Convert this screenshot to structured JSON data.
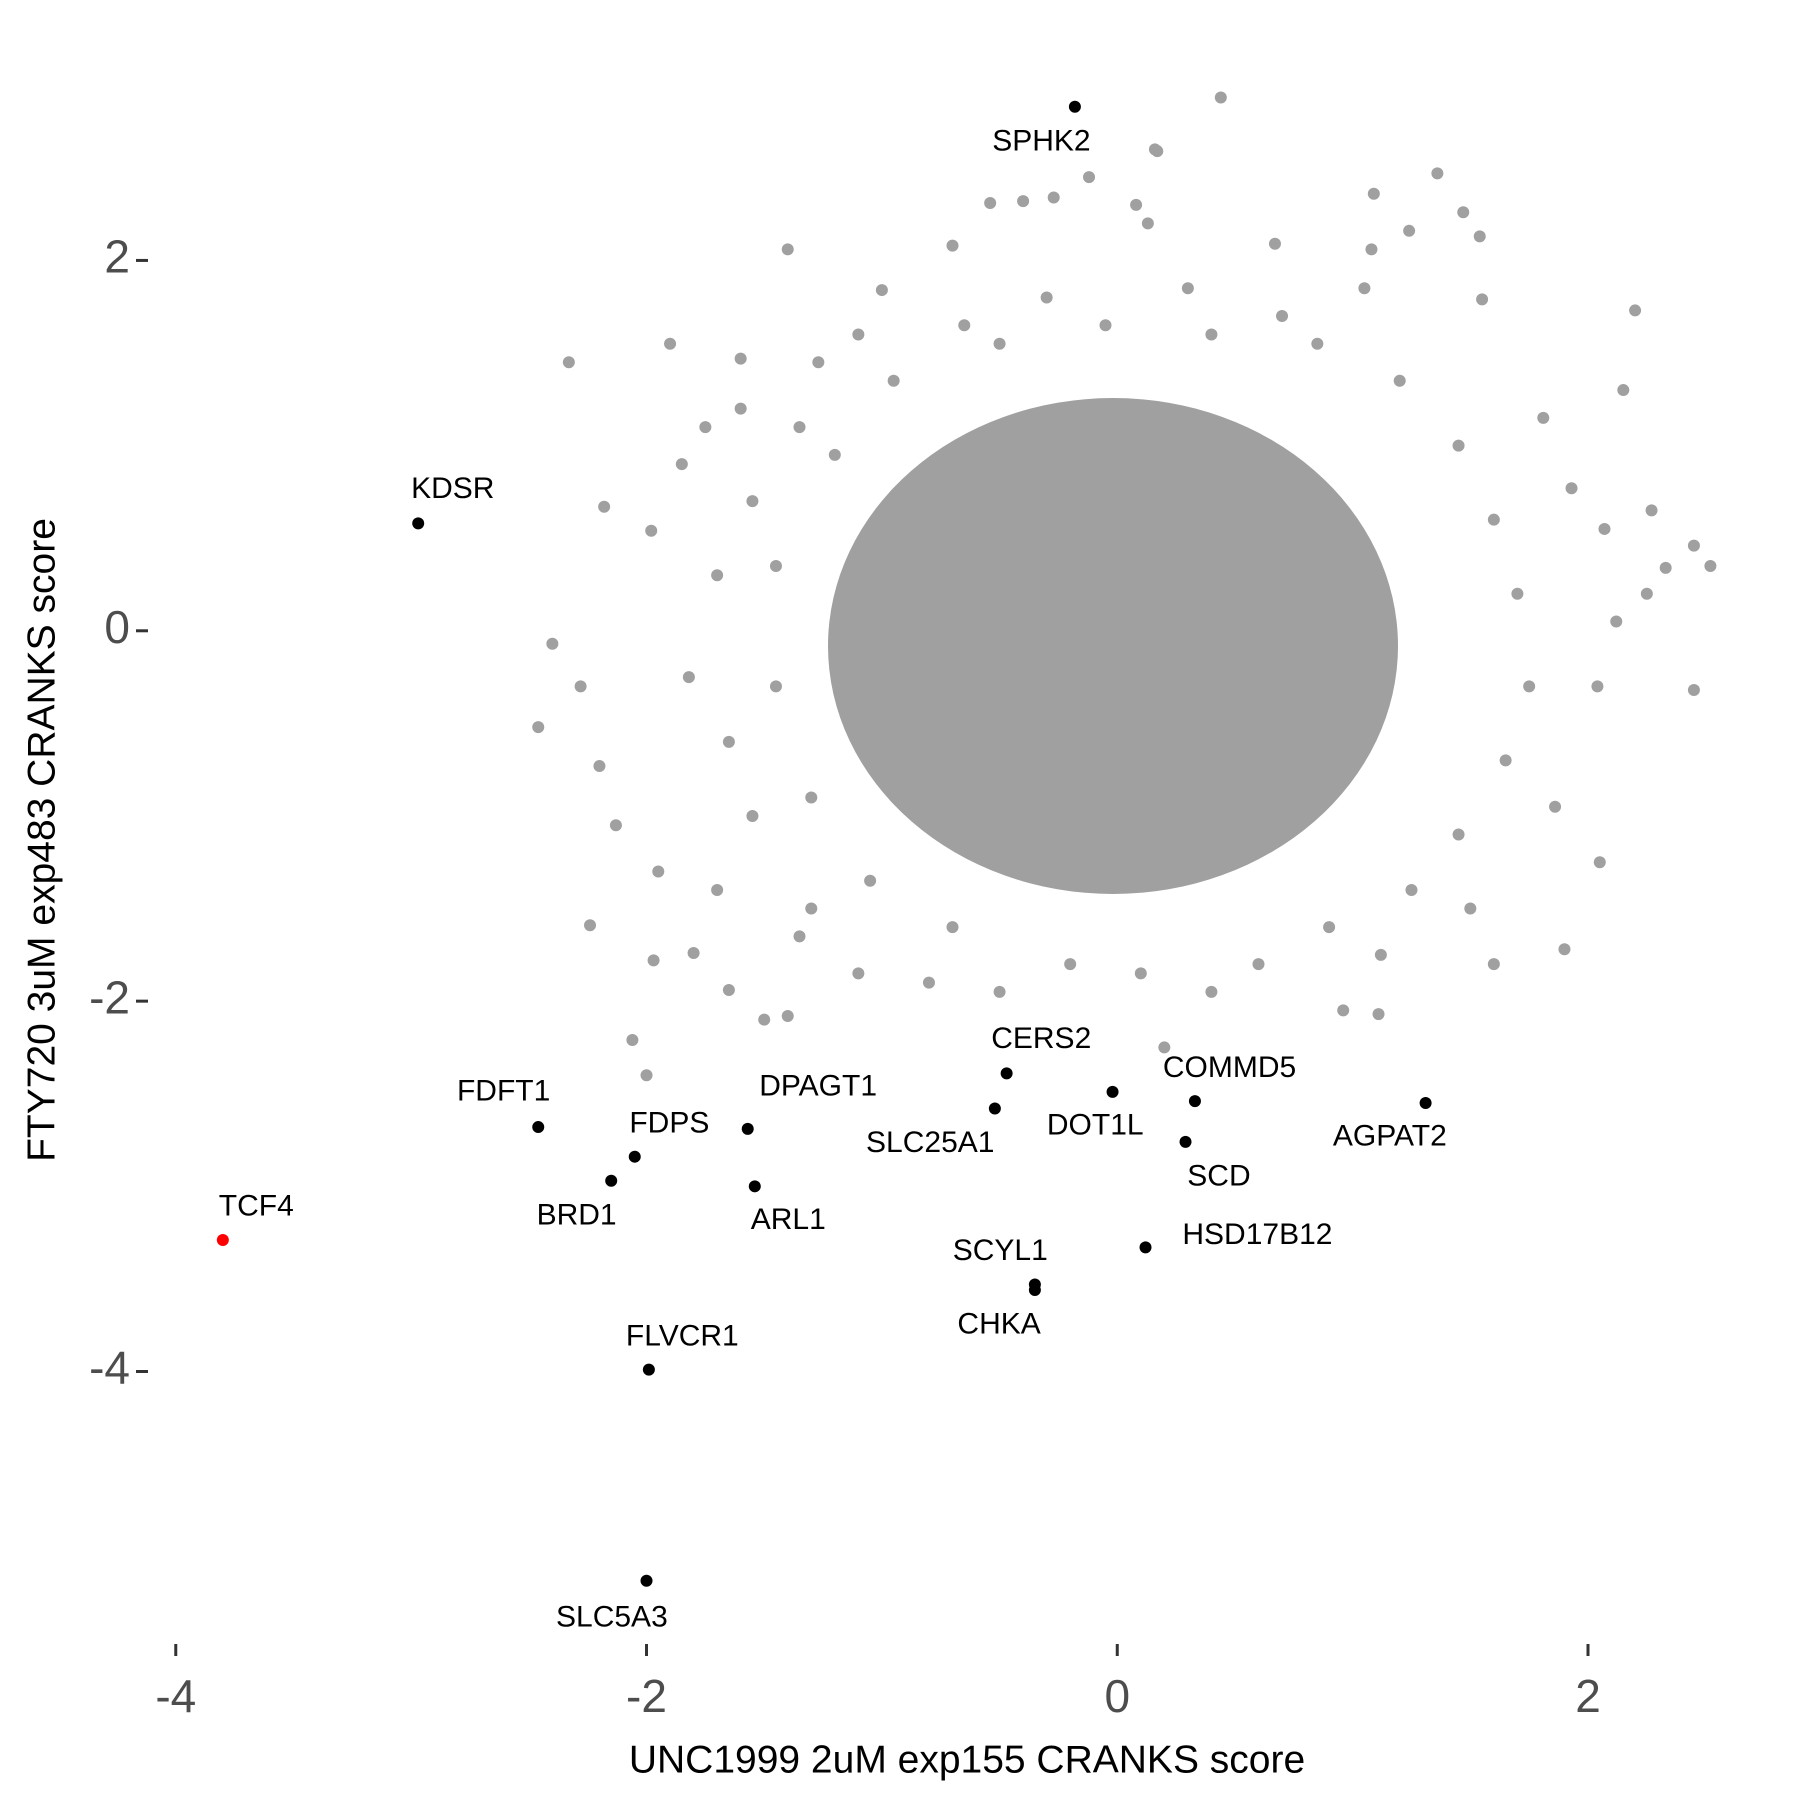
{
  "chart_data": {
    "type": "scatter",
    "x_label": "UNC1999 2uM exp155 CRANKS score",
    "y_label": "FTY720 3uM exp483 CRANKS score",
    "xlim": [
      -4.05,
      2.65
    ],
    "ylim": [
      -5.45,
      3.05
    ],
    "xticks": [
      -4,
      -2,
      0,
      2
    ],
    "yticks": [
      2,
      0,
      -2,
      -4
    ],
    "series": [
      {
        "color": "#a0a0a0",
        "x": [
          0.44,
          0.16,
          0.17,
          0.08,
          -0.12,
          -0.27,
          0.13,
          -0.54,
          -0.4,
          1.36,
          1.09,
          1.47,
          1.24,
          1.54,
          0.67,
          1.08,
          -1.4,
          -0.7,
          -1.0,
          -1.1,
          -1.6,
          -2.33,
          -1.9,
          -1.75,
          -2.18,
          -1.98,
          -2.4,
          -2.28,
          -2.46,
          -2.2,
          -2.13,
          -2.24,
          -1.95,
          -1.97,
          -1.8,
          -1.65,
          -1.5,
          -2.06,
          -2.0,
          -1.4,
          0.2,
          0.4,
          0.96,
          1.11,
          1.6,
          1.9,
          2.05,
          1.86,
          2.04,
          2.45,
          2.12,
          2.25,
          2.07,
          2.33,
          2.45,
          2.52,
          2.27,
          1.93,
          2.15,
          1.81,
          2.2,
          1.55,
          1.05,
          0.7,
          0.3,
          -0.3,
          -0.65,
          -1.27,
          -1.6,
          -1.85,
          -1.55,
          -1.35,
          -1.7,
          -1.82,
          -1.65,
          -1.55,
          -1.3,
          -1.1,
          -0.8,
          -0.5,
          -0.2,
          0.1,
          0.6,
          0.9,
          1.25,
          1.45,
          1.65,
          1.75,
          1.7,
          1.6,
          1.45,
          1.2,
          0.85,
          0.4,
          -0.05,
          -0.5,
          -0.95,
          -1.2,
          -1.45,
          -1.45,
          -1.3,
          -1.05,
          -0.7,
          1.5,
          1.12,
          -1.35,
          -1.7
        ],
        "y": [
          2.88,
          2.6,
          2.59,
          2.3,
          2.45,
          2.34,
          2.2,
          2.31,
          2.32,
          2.47,
          2.36,
          2.26,
          2.16,
          2.13,
          2.09,
          2.06,
          2.06,
          2.08,
          1.84,
          1.6,
          1.47,
          1.45,
          1.55,
          1.1,
          0.67,
          0.54,
          -0.07,
          -0.3,
          -0.52,
          -0.73,
          -1.05,
          -1.59,
          -1.3,
          -1.78,
          -1.74,
          -1.94,
          -2.1,
          -2.21,
          -2.4,
          -2.08,
          -2.25,
          -1.95,
          -2.05,
          -2.07,
          -1.8,
          -1.72,
          -1.25,
          -0.95,
          -0.3,
          -0.32,
          0.05,
          0.2,
          0.55,
          0.34,
          0.46,
          0.35,
          0.65,
          0.77,
          1.3,
          1.15,
          1.73,
          1.79,
          1.85,
          1.7,
          1.85,
          1.8,
          1.65,
          1.45,
          1.2,
          0.9,
          0.7,
          1.1,
          0.3,
          -0.25,
          -0.6,
          -1.0,
          -1.5,
          -1.85,
          -1.9,
          -1.95,
          -1.8,
          -1.85,
          -1.8,
          -1.6,
          -1.4,
          -1.1,
          -0.7,
          -0.3,
          0.2,
          0.6,
          1.0,
          1.35,
          1.55,
          1.6,
          1.65,
          1.55,
          1.35,
          0.95,
          0.35,
          -0.3,
          -0.9,
          -1.35,
          -1.6,
          -1.5,
          -1.75,
          -1.65,
          -1.4
        ]
      },
      {
        "color": "#000000",
        "labels": [
          "SPHK2",
          "KDSR",
          "FDFT1",
          "FDPS",
          "BRD1",
          "DPAGT1",
          "ARL1",
          "CERS2",
          "SLC25A1",
          "DOT1L",
          "COMMD5",
          "SCD",
          "AGPAT2",
          "HSD17B12",
          "SCYL1",
          "CHKA",
          "FLVCR1",
          "SLC5A3"
        ],
        "x": [
          -0.18,
          -2.97,
          -2.46,
          -2.05,
          -2.15,
          -1.57,
          -1.54,
          -0.47,
          -0.52,
          -0.02,
          0.33,
          0.29,
          1.31,
          0.12,
          -0.35,
          -0.35,
          -1.99,
          -2.0
        ],
        "y": [
          2.83,
          0.58,
          -2.68,
          -2.84,
          -2.97,
          -2.69,
          -3.0,
          -2.39,
          -2.58,
          -2.49,
          -2.54,
          -2.76,
          -2.55,
          -3.33,
          -3.53,
          -3.56,
          -3.99,
          -5.13
        ]
      },
      {
        "color": "#ff0000",
        "labels": [
          "TCF4"
        ],
        "x": [
          -3.8
        ],
        "y": [
          -3.29
        ]
      }
    ]
  }
}
